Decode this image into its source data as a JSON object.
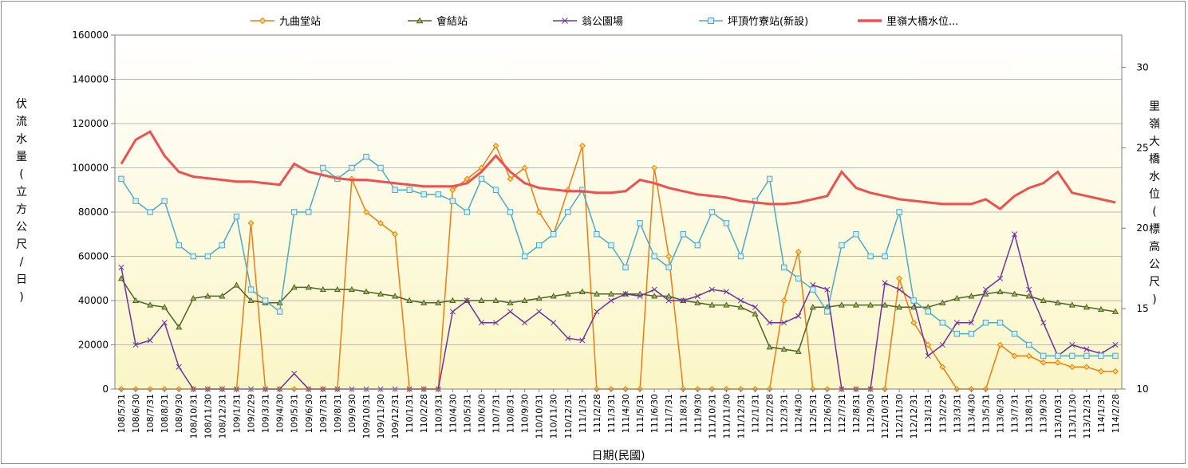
{
  "chart_data": {
    "type": "line",
    "xlabel": "日期(民國)",
    "ylabel_left": "伏流水量(立方公尺/日)",
    "ylabel_right": "里嶺大橋水位(標高公尺)",
    "ylim_left": [
      0,
      160000
    ],
    "yticks_left": [
      "0",
      "20000",
      "40000",
      "60000",
      "80000",
      "100000",
      "120000",
      "140000",
      "160000"
    ],
    "ylim_right": [
      10,
      32
    ],
    "yticks_right": [
      "10",
      "15",
      "20",
      "25",
      "30"
    ],
    "x_ticks": [
      "108/5/31",
      "108/6/30",
      "108/7/31",
      "108/8/31",
      "108/9/30",
      "108/10/31",
      "108/11/30",
      "108/12/31",
      "109/1/31",
      "109/2/29",
      "109/3/31",
      "109/4/30",
      "109/5/31",
      "109/6/30",
      "109/7/31",
      "109/8/31",
      "109/9/30",
      "109/10/31",
      "109/11/30",
      "109/12/31",
      "110/1/31",
      "110/2/28",
      "110/3/31",
      "110/4/30",
      "110/5/31",
      "110/6/30",
      "110/7/31",
      "110/8/31",
      "110/9/30",
      "110/10/31",
      "110/11/30",
      "110/12/31",
      "111/1/31",
      "111/2/28",
      "111/3/31",
      "111/4/30",
      "111/5/31",
      "111/6/30",
      "111/7/31",
      "111/8/31",
      "111/9/30",
      "111/10/31",
      "111/11/30",
      "111/12/31",
      "112/1/31",
      "112/2/28",
      "112/3/31",
      "112/4/30",
      "112/5/31",
      "112/6/30",
      "112/7/31",
      "112/8/31",
      "112/9/30",
      "112/10/31",
      "112/11/30",
      "112/12/31",
      "113/1/31",
      "113/2/29",
      "113/3/31",
      "113/4/30",
      "113/5/31",
      "113/6/30",
      "113/7/31",
      "113/8/31",
      "113/9/30",
      "113/10/31",
      "113/11/30",
      "113/12/31",
      "114/1/31",
      "114/2/28"
    ],
    "legend_position": "top",
    "grid": true,
    "series": [
      {
        "name": "九曲堂站",
        "axis": "left",
        "color": "#f07c12",
        "marker": "diamond",
        "x": [
          "108/5/31",
          "108/6/30",
          "108/7/31",
          "108/8/31",
          "108/9/30",
          "108/10/31",
          "108/11/30",
          "108/12/31",
          "109/1/31",
          "109/2/29",
          "109/3/31",
          "109/4/30",
          "109/5/31",
          "109/6/30",
          "109/7/31",
          "109/8/31",
          "109/9/30",
          "109/10/31",
          "109/11/30",
          "109/12/31",
          "110/1/31",
          "110/2/28",
          "110/3/31",
          "110/4/30",
          "110/5/31",
          "110/6/30",
          "110/7/31",
          "110/8/31",
          "110/9/30",
          "110/10/31",
          "110/11/30",
          "110/12/31",
          "111/1/31",
          "111/2/28",
          "111/3/31",
          "111/4/30",
          "111/5/31",
          "111/6/30",
          "111/7/31",
          "111/8/31",
          "111/9/30",
          "111/10/31",
          "111/11/30",
          "111/12/31",
          "112/1/31",
          "112/2/28",
          "112/3/31",
          "112/4/30",
          "112/5/31",
          "112/6/30",
          "112/7/31",
          "112/8/31",
          "112/9/30",
          "112/10/31",
          "112/11/30",
          "112/12/31",
          "113/1/31",
          "113/2/29",
          "113/3/31",
          "113/4/30",
          "113/5/31",
          "113/6/30",
          "113/7/31",
          "113/8/31",
          "113/9/30",
          "113/10/31",
          "113/11/30",
          "113/12/31",
          "114/1/31",
          "114/2/28"
        ],
        "values": [
          0,
          0,
          0,
          0,
          0,
          0,
          0,
          0,
          0,
          75000,
          0,
          0,
          0,
          0,
          0,
          0,
          95000,
          80000,
          75000,
          70000,
          0,
          0,
          0,
          90000,
          95000,
          100000,
          110000,
          95000,
          100000,
          80000,
          70000,
          90000,
          110000,
          0,
          0,
          0,
          0,
          100000,
          60000,
          0,
          0,
          0,
          0,
          0,
          0,
          0,
          40000,
          62000,
          0,
          0,
          0,
          0,
          0,
          0,
          50000,
          30000,
          20000,
          10000,
          0,
          0,
          0,
          20000,
          15000,
          15000,
          12000,
          12000,
          10000,
          10000,
          8000,
          8000
        ]
      },
      {
        "name": "會結站",
        "axis": "left",
        "color": "#4f6228",
        "marker": "triangle",
        "x": [
          "108/5/31",
          "108/6/30",
          "108/7/31",
          "108/8/31",
          "108/9/30",
          "108/10/31",
          "108/11/30",
          "108/12/31",
          "109/1/31",
          "109/2/29",
          "109/3/31",
          "109/4/30",
          "109/5/31",
          "109/6/30",
          "109/7/31",
          "109/8/31",
          "109/9/30",
          "109/10/31",
          "109/11/30",
          "109/12/31",
          "110/1/31",
          "110/2/28",
          "110/3/31",
          "110/4/30",
          "110/5/31",
          "110/6/30",
          "110/7/31",
          "110/8/31",
          "110/9/30",
          "110/10/31",
          "110/11/30",
          "110/12/31",
          "111/1/31",
          "111/2/28",
          "111/3/31",
          "111/4/30",
          "111/5/31",
          "111/6/30",
          "111/7/31",
          "111/8/31",
          "111/9/30",
          "111/10/31",
          "111/11/30",
          "111/12/31",
          "112/1/31",
          "112/2/28",
          "112/3/31",
          "112/4/30",
          "112/5/31",
          "112/6/30",
          "112/7/31",
          "112/8/31",
          "112/9/30",
          "112/10/31",
          "112/11/30",
          "112/12/31",
          "113/1/31",
          "113/2/29",
          "113/3/31",
          "113/4/30",
          "113/5/31",
          "113/6/30",
          "113/7/31",
          "113/8/31",
          "113/9/30",
          "113/10/31",
          "113/11/30",
          "113/12/31",
          "114/1/31",
          "114/2/28"
        ],
        "values": [
          50000,
          40000,
          38000,
          37000,
          28000,
          41000,
          42000,
          42000,
          47000,
          40000,
          39000,
          39000,
          46000,
          46000,
          45000,
          45000,
          45000,
          44000,
          43000,
          42000,
          40000,
          39000,
          39000,
          40000,
          40000,
          40000,
          40000,
          39000,
          40000,
          41000,
          42000,
          43000,
          44000,
          43000,
          43000,
          43000,
          43000,
          42000,
          42000,
          40000,
          39000,
          38000,
          38000,
          37000,
          34000,
          19000,
          18000,
          17000,
          37000,
          37000,
          38000,
          38000,
          38000,
          38000,
          37000,
          37000,
          37000,
          39000,
          41000,
          42000,
          43000,
          44000,
          43000,
          42000,
          40000,
          39000,
          38000,
          37000,
          36000,
          35000
        ]
      },
      {
        "name": "翁公園場",
        "axis": "left",
        "color": "#7030a0",
        "marker": "cross",
        "x": [
          "108/5/31",
          "108/6/30",
          "108/7/31",
          "108/8/31",
          "108/9/30",
          "108/10/31",
          "108/11/30",
          "108/12/31",
          "109/1/31",
          "109/2/29",
          "109/3/31",
          "109/4/30",
          "109/5/31",
          "109/6/30",
          "109/7/31",
          "109/8/31",
          "109/9/30",
          "109/10/31",
          "109/11/30",
          "109/12/31",
          "110/1/31",
          "110/2/28",
          "110/3/31",
          "110/4/30",
          "110/5/31",
          "110/6/30",
          "110/7/31",
          "110/8/31",
          "110/9/30",
          "110/10/31",
          "110/11/30",
          "110/12/31",
          "111/1/31",
          "111/2/28",
          "111/3/31",
          "111/4/30",
          "111/5/31",
          "111/6/30",
          "111/7/31",
          "111/8/31",
          "111/9/30",
          "111/10/31",
          "111/11/30",
          "111/12/31",
          "112/1/31",
          "112/2/28",
          "112/3/31",
          "112/4/30",
          "112/5/31",
          "112/6/30",
          "112/7/31",
          "112/8/31",
          "112/9/30",
          "112/10/31",
          "112/11/30",
          "112/12/31",
          "113/1/31",
          "113/2/29",
          "113/3/31",
          "113/4/30",
          "113/5/31",
          "113/6/30",
          "113/7/31",
          "113/8/31",
          "113/9/30",
          "113/10/31",
          "113/11/30",
          "113/12/31",
          "114/1/31",
          "114/2/28"
        ],
        "values": [
          55000,
          20000,
          22000,
          30000,
          10000,
          0,
          0,
          0,
          0,
          0,
          0,
          0,
          7000,
          0,
          0,
          0,
          0,
          0,
          0,
          0,
          0,
          0,
          0,
          35000,
          40000,
          30000,
          30000,
          35000,
          30000,
          35000,
          30000,
          23000,
          22000,
          35000,
          40000,
          43000,
          42000,
          45000,
          40000,
          40000,
          42000,
          45000,
          44000,
          40000,
          37000,
          30000,
          30000,
          33000,
          47000,
          45000,
          0,
          0,
          0,
          48000,
          45000,
          40000,
          15000,
          20000,
          30000,
          30000,
          45000,
          50000,
          70000,
          45000,
          30000,
          15000,
          20000,
          18000,
          16000,
          20000
        ]
      },
      {
        "name": "坪頂竹寮站(新設)",
        "axis": "left",
        "color": "#4bacc6",
        "marker": "square",
        "x": [
          "108/5/31",
          "108/6/30",
          "108/7/31",
          "108/8/31",
          "108/9/30",
          "108/10/31",
          "108/11/30",
          "108/12/31",
          "109/1/31",
          "109/2/29",
          "109/3/31",
          "109/4/30",
          "109/5/31",
          "109/6/30",
          "109/7/31",
          "109/8/31",
          "109/9/30",
          "109/10/31",
          "109/11/30",
          "109/12/31",
          "110/1/31",
          "110/2/28",
          "110/3/31",
          "110/4/30",
          "110/5/31",
          "110/6/30",
          "110/7/31",
          "110/8/31",
          "110/9/30",
          "110/10/31",
          "110/11/30",
          "110/12/31",
          "111/1/31",
          "111/2/28",
          "111/3/31",
          "111/4/30",
          "111/5/31",
          "111/6/30",
          "111/7/31",
          "111/8/31",
          "111/9/30",
          "111/10/31",
          "111/11/30",
          "111/12/31",
          "112/1/31",
          "112/2/28",
          "112/3/31",
          "112/4/30",
          "112/5/31",
          "112/6/30",
          "112/7/31",
          "112/8/31",
          "112/9/30",
          "112/10/31",
          "112/11/30",
          "112/12/31",
          "113/1/31",
          "113/2/29",
          "113/3/31",
          "113/4/30",
          "113/5/31",
          "113/6/30",
          "113/7/31",
          "113/8/31",
          "113/9/30",
          "113/10/31",
          "113/11/30",
          "113/12/31",
          "114/1/31",
          "114/2/28"
        ],
        "values": [
          95000,
          85000,
          80000,
          85000,
          65000,
          60000,
          60000,
          65000,
          78000,
          45000,
          40000,
          35000,
          80000,
          80000,
          100000,
          95000,
          100000,
          105000,
          100000,
          90000,
          90000,
          88000,
          88000,
          85000,
          80000,
          95000,
          90000,
          80000,
          60000,
          65000,
          70000,
          80000,
          90000,
          70000,
          65000,
          55000,
          75000,
          60000,
          55000,
          70000,
          65000,
          80000,
          75000,
          60000,
          85000,
          95000,
          55000,
          50000,
          45000,
          35000,
          65000,
          70000,
          60000,
          60000,
          80000,
          40000,
          35000,
          30000,
          25000,
          25000,
          30000,
          30000,
          25000,
          20000,
          15000,
          15000,
          15000,
          15000,
          15000,
          15000
        ]
      },
      {
        "name": "里嶺大橋水位...",
        "axis": "right",
        "color": "#ef4f4f",
        "marker": "none",
        "x": [
          "108/5/31",
          "108/6/30",
          "108/7/31",
          "108/8/31",
          "108/9/30",
          "108/10/31",
          "108/11/30",
          "108/12/31",
          "109/1/31",
          "109/2/29",
          "109/3/31",
          "109/4/30",
          "109/5/31",
          "109/6/30",
          "109/7/31",
          "109/8/31",
          "109/9/30",
          "109/10/31",
          "109/11/30",
          "109/12/31",
          "110/1/31",
          "110/2/28",
          "110/3/31",
          "110/4/30",
          "110/5/31",
          "110/6/30",
          "110/7/31",
          "110/8/31",
          "110/9/30",
          "110/10/31",
          "110/11/30",
          "110/12/31",
          "111/1/31",
          "111/2/28",
          "111/3/31",
          "111/4/30",
          "111/5/31",
          "111/6/30",
          "111/7/31",
          "111/8/31",
          "111/9/30",
          "111/10/31",
          "111/11/30",
          "111/12/31",
          "112/1/31",
          "112/2/28",
          "112/3/31",
          "112/4/30",
          "112/5/31",
          "112/6/30",
          "112/7/31",
          "112/8/31",
          "112/9/30",
          "112/10/31",
          "112/11/30",
          "112/12/31",
          "113/1/31",
          "113/2/29",
          "113/3/31",
          "113/4/30",
          "113/5/31",
          "113/6/30",
          "113/7/31",
          "113/8/31",
          "113/9/30",
          "113/10/31",
          "113/11/30",
          "113/12/31",
          "114/1/31",
          "114/2/28"
        ],
        "values": [
          24.0,
          25.5,
          26.0,
          24.5,
          23.5,
          23.2,
          23.1,
          23.0,
          22.9,
          22.9,
          22.8,
          22.7,
          24.0,
          23.5,
          23.3,
          23.1,
          23.0,
          23.0,
          22.9,
          22.8,
          22.7,
          22.6,
          22.6,
          22.6,
          22.8,
          23.5,
          24.5,
          23.5,
          22.8,
          22.5,
          22.4,
          22.3,
          22.3,
          22.2,
          22.2,
          22.3,
          23.0,
          22.8,
          22.5,
          22.3,
          22.1,
          22.0,
          21.9,
          21.7,
          21.6,
          21.5,
          21.5,
          21.6,
          21.8,
          22.0,
          23.5,
          22.5,
          22.2,
          22.0,
          21.8,
          21.7,
          21.6,
          21.5,
          21.5,
          21.5,
          21.8,
          21.2,
          22.0,
          22.5,
          22.8,
          23.5,
          22.2,
          22.0,
          21.8,
          21.6
        ]
      }
    ]
  }
}
